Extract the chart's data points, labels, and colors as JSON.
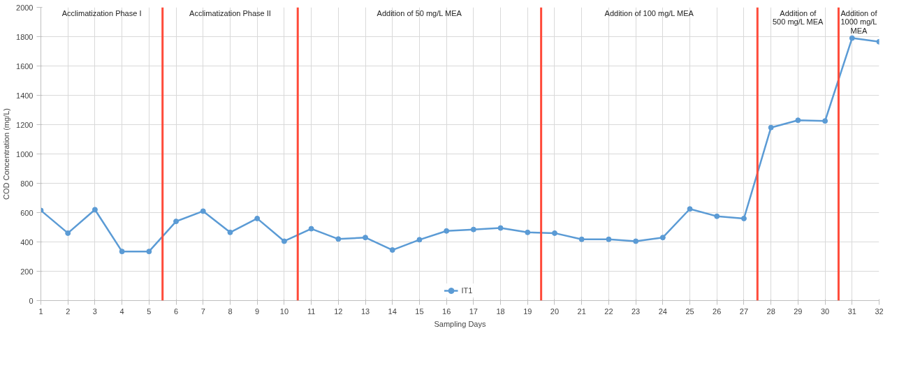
{
  "chart_data": {
    "type": "line",
    "xlabel": "Sampling Days",
    "ylabel": "COD Concentration (mg/L)",
    "x": [
      1,
      2,
      3,
      4,
      5,
      6,
      7,
      8,
      9,
      10,
      11,
      12,
      13,
      14,
      15,
      16,
      17,
      18,
      19,
      20,
      21,
      22,
      23,
      24,
      25,
      26,
      27,
      28,
      29,
      30,
      31,
      32
    ],
    "series": [
      {
        "name": "IT1",
        "color": "#5b9bd5",
        "values": [
          615,
          460,
          620,
          335,
          335,
          540,
          610,
          465,
          560,
          405,
          490,
          420,
          430,
          345,
          415,
          475,
          485,
          495,
          465,
          460,
          418,
          418,
          405,
          430,
          625,
          575,
          560,
          1180,
          1230,
          1225,
          1790,
          1765
        ]
      }
    ],
    "xlim": [
      1,
      32
    ],
    "xticks": [
      1,
      2,
      3,
      4,
      5,
      6,
      7,
      8,
      9,
      10,
      11,
      12,
      13,
      14,
      15,
      16,
      17,
      18,
      19,
      20,
      21,
      22,
      23,
      24,
      25,
      26,
      27,
      28,
      29,
      30,
      31,
      32
    ],
    "ylim": [
      0,
      2000
    ],
    "yticks": [
      0,
      200,
      400,
      600,
      800,
      1000,
      1200,
      1400,
      1600,
      1800,
      2000
    ],
    "ref_lines": [
      {
        "axis": "x",
        "value": 5.5,
        "color": "#ff4b3a"
      },
      {
        "axis": "x",
        "value": 10.5,
        "color": "#ff4b3a"
      },
      {
        "axis": "x",
        "value": 19.5,
        "color": "#ff4b3a"
      },
      {
        "axis": "x",
        "value": 27.5,
        "color": "#ff4b3a"
      },
      {
        "axis": "x",
        "value": 30.5,
        "color": "#ff4b3a"
      }
    ],
    "annotations": [
      "Acclimatization Phase I",
      "Acclimatization Phase II",
      "Addition of 50 mg/L MEA",
      "Addition of 100 mg/L MEA",
      "Addition of\n500 mg/L MEA",
      "Addition of\n1000 mg/L\nMEA"
    ],
    "grid": true,
    "legend": "bottom",
    "marker": "circle",
    "line_style": "solid"
  }
}
